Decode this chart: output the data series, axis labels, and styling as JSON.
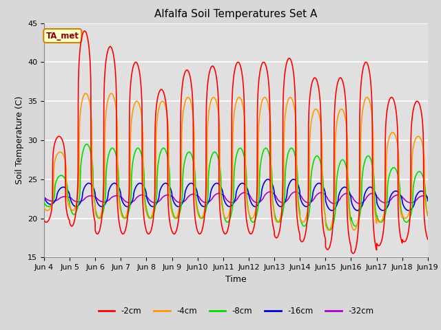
{
  "title": "Alfalfa Soil Temperatures Set A",
  "xlabel": "Time",
  "ylabel": "Soil Temperature (C)",
  "ylim": [
    15,
    45
  ],
  "yticks": [
    15,
    20,
    25,
    30,
    35,
    40,
    45
  ],
  "colors": {
    "-2cm": "#ff0000",
    "-4cm": "#ff9900",
    "-8cm": "#00dd00",
    "-16cm": "#0000dd",
    "-32cm": "#aa00cc"
  },
  "legend_labels": [
    "-2cm",
    "-4cm",
    "-8cm",
    "-16cm",
    "-32cm"
  ],
  "annotation_text": "TA_met",
  "annotation_bg": "#ffffcc",
  "annotation_border": "#cc8800",
  "fig_bg": "#d8d8d8",
  "plot_bg": "#e0e0e0",
  "grid_color": "#ffffff",
  "n_days": 15,
  "points_per_day": 144,
  "start_day": 4,
  "figsize": [
    6.4,
    4.8
  ],
  "dpi": 100
}
